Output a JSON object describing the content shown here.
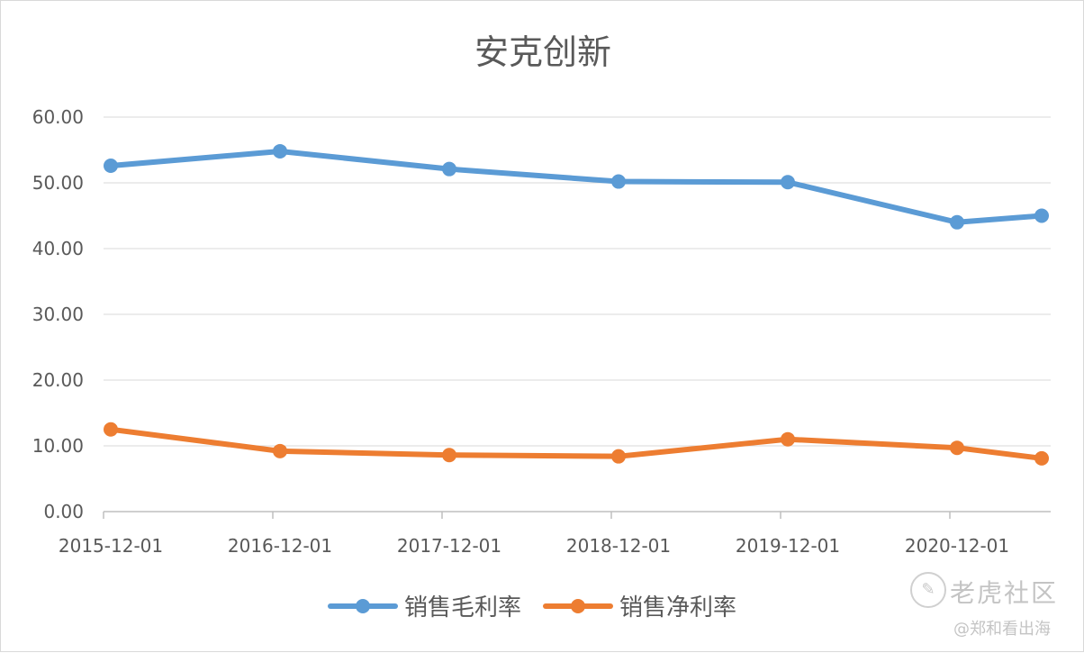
{
  "chart_data": {
    "type": "line",
    "title": "安克创新",
    "x": [
      "2015-12-01",
      "2016-12-01",
      "2017-12-01",
      "2018-12-01",
      "2019-12-01",
      "2020-12-01",
      "2021-06-30"
    ],
    "x_tick_labels": [
      "2015-12-01",
      "2016-12-01",
      "2017-12-01",
      "2018-12-01",
      "2019-12-01",
      "2020-12-01"
    ],
    "y_ticks": [
      "0.00",
      "10.00",
      "20.00",
      "30.00",
      "40.00",
      "50.00",
      "60.00"
    ],
    "ylim": [
      0,
      60
    ],
    "grid": true,
    "legend_position": "bottom",
    "series": [
      {
        "name": "销售毛利率",
        "color": "#5b9bd5",
        "values": [
          52.6,
          54.8,
          52.1,
          50.2,
          50.1,
          44.0,
          45.0
        ]
      },
      {
        "name": "销售净利率",
        "color": "#ed7d31",
        "values": [
          12.5,
          9.2,
          8.6,
          8.4,
          11.0,
          9.7,
          8.1
        ]
      }
    ]
  },
  "watermark": {
    "logo_icon": "tiger-logo-icon",
    "site": "老虎社区",
    "author": "@郑和看出海"
  }
}
